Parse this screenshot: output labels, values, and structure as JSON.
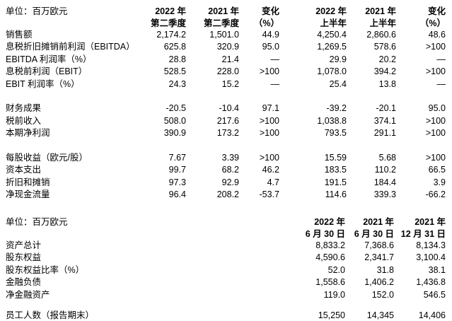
{
  "table1": {
    "unit_label": "单位：百万欧元",
    "columns": [
      {
        "line1": "2022 年",
        "line2": "第二季度"
      },
      {
        "line1": "2021 年",
        "line2": "第二季度"
      },
      {
        "line1": "变化",
        "line2": "（%）"
      },
      {
        "line1": "2022 年",
        "line2": "上半年"
      },
      {
        "line1": "2021 年",
        "line2": "上半年"
      },
      {
        "line1": "变化",
        "line2": "（%）"
      }
    ],
    "groups": [
      {
        "rows": [
          {
            "label": "销售额",
            "values": [
              "2,174.2",
              "1,501.0",
              "44.9",
              "4,250.4",
              "2,860.6",
              "48.6"
            ]
          },
          {
            "label": "息税折旧摊销前利润（EBITDA）",
            "values": [
              "625.8",
              "320.9",
              "95.0",
              "1,269.5",
              "578.6",
              ">100"
            ]
          },
          {
            "label": "EBITDA 利润率（%）",
            "values": [
              "28.8",
              "21.4",
              "—",
              "29.9",
              "20.2",
              "—"
            ]
          },
          {
            "label": "息税前利润（EBIT）",
            "values": [
              "528.5",
              "228.0",
              ">100",
              "1,078.0",
              "394.2",
              ">100"
            ]
          },
          {
            "label": "EBIT 利润率（%）",
            "values": [
              "24.3",
              "15.2",
              "—",
              "25.4",
              "13.8",
              "—"
            ]
          }
        ]
      },
      {
        "rows": [
          {
            "label": "财务成果",
            "values": [
              "-20.5",
              "-10.4",
              "97.1",
              "-39.2",
              "-20.1",
              "95.0"
            ]
          },
          {
            "label": "税前收入",
            "values": [
              "508.0",
              "217.6",
              ">100",
              "1,038.8",
              "374.1",
              ">100"
            ]
          },
          {
            "label": "本期净利润",
            "values": [
              "390.9",
              "173.2",
              ">100",
              "793.5",
              "291.1",
              ">100"
            ]
          }
        ]
      },
      {
        "rows": [
          {
            "label": "每股收益（欧元/股）",
            "values": [
              "7.67",
              "3.39",
              ">100",
              "15.59",
              "5.68",
              ">100"
            ]
          },
          {
            "label": "资本支出",
            "values": [
              "99.7",
              "68.2",
              "46.2",
              "183.5",
              "110.2",
              "66.5"
            ]
          },
          {
            "label": "折旧和摊销",
            "values": [
              "97.3",
              "92.9",
              "4.7",
              "191.5",
              "184.4",
              "3.9"
            ]
          },
          {
            "label": "净现金流量",
            "values": [
              "96.4",
              "208.2",
              "-53.7",
              "114.6",
              "339.3",
              "-66.2"
            ]
          }
        ]
      }
    ]
  },
  "table2": {
    "unit_label": "单位：百万欧元",
    "columns": [
      {
        "line1": "2022 年",
        "line2": "6 月 30 日"
      },
      {
        "line1": "2021 年",
        "line2": "6 月 30 日"
      },
      {
        "line1": "2021 年",
        "line2": "12 月 31 日"
      }
    ],
    "groups": [
      {
        "rows": [
          {
            "label": "资产总计",
            "values": [
              "8,833.2",
              "7,368.6",
              "8,134.3"
            ]
          },
          {
            "label": "股东权益",
            "values": [
              "4,590.6",
              "2,341.7",
              "3,100.4"
            ]
          },
          {
            "label": "股东权益比率（%）",
            "values": [
              "52.0",
              "31.8",
              "38.1"
            ]
          },
          {
            "label": "金融负债",
            "values": [
              "1,558.6",
              "1,406.2",
              "1,436.8"
            ]
          },
          {
            "label": "净金融资产",
            "values": [
              "119.0",
              "152.0",
              "546.5"
            ]
          }
        ]
      },
      {
        "rows": [
          {
            "label": "员工人数（报告期末）",
            "values": [
              "15,250",
              "14,345",
              "14,406"
            ]
          }
        ]
      }
    ]
  }
}
